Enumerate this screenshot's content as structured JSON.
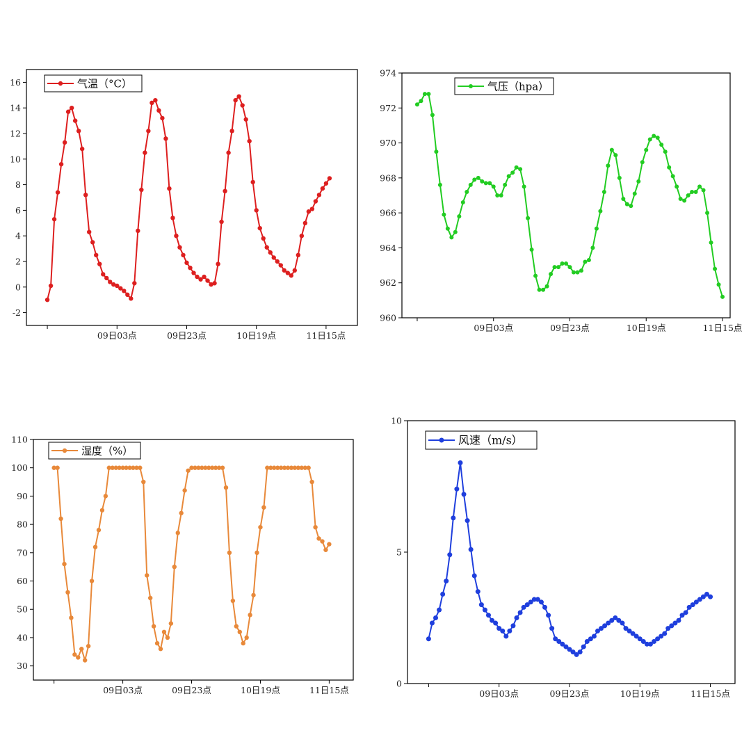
{
  "chart_data": [
    {
      "type": "line",
      "legend": "气温（°C）",
      "color": "#dd1f1f",
      "x_ticks": [
        "09日03点",
        "09日23点",
        "10日19点",
        "11日15点"
      ],
      "x_tick_index": [
        20,
        40,
        60,
        80
      ],
      "y_ticks": [
        -2,
        0,
        2,
        4,
        6,
        8,
        10,
        12,
        14,
        16
      ],
      "ylim": [
        -3,
        17
      ],
      "xlim": [
        -6,
        89
      ],
      "values": [
        -1,
        0.1,
        5.3,
        7.4,
        9.6,
        11.3,
        13.7,
        14,
        13,
        12.2,
        10.8,
        7.2,
        4.3,
        3.5,
        2.5,
        1.8,
        1,
        0.7,
        0.4,
        0.2,
        0.1,
        -0.1,
        -0.3,
        -0.6,
        -0.9,
        0.3,
        4.4,
        7.6,
        10.5,
        12.2,
        14.4,
        14.6,
        13.8,
        13.2,
        11.6,
        7.7,
        5.4,
        4,
        3.1,
        2.5,
        1.9,
        1.5,
        1.1,
        0.8,
        0.6,
        0.8,
        0.5,
        0.2,
        0.3,
        1.8,
        5.1,
        7.5,
        10.5,
        12.2,
        14.6,
        14.9,
        14.2,
        13.1,
        11.4,
        8.2,
        6,
        4.6,
        3.8,
        3.1,
        2.7,
        2.3,
        2,
        1.7,
        1.3,
        1.1,
        0.9,
        1.3,
        2.5,
        4,
        5,
        5.9,
        6.1,
        6.7,
        7.2,
        7.7,
        8.1,
        8.5
      ]
    },
    {
      "type": "line",
      "legend": "气压（hpa）",
      "color": "#22cc22",
      "x_ticks": [
        "09日03点",
        "09日23点",
        "10日19点",
        "11日15点"
      ],
      "x_tick_index": [
        20,
        40,
        60,
        80
      ],
      "y_ticks": [
        960,
        962,
        964,
        966,
        968,
        970,
        972,
        974
      ],
      "ylim": [
        960,
        974
      ],
      "xlim": [
        -4,
        82
      ],
      "values": [
        972.2,
        972.4,
        972.8,
        972.8,
        971.6,
        969.5,
        967.6,
        965.9,
        965.1,
        964.6,
        964.9,
        965.8,
        966.6,
        967.2,
        967.6,
        967.9,
        968,
        967.8,
        967.7,
        967.7,
        967.5,
        967,
        967,
        967.6,
        968.1,
        968.3,
        968.6,
        968.5,
        967.5,
        965.7,
        963.9,
        962.4,
        961.6,
        961.6,
        961.8,
        962.5,
        962.9,
        962.9,
        963.1,
        963.1,
        962.9,
        962.6,
        962.6,
        962.7,
        963.2,
        963.3,
        964,
        965.1,
        966.1,
        967.2,
        968.7,
        969.6,
        969.3,
        968,
        966.8,
        966.5,
        966.4,
        967.1,
        967.8,
        968.9,
        969.6,
        970.2,
        970.4,
        970.3,
        969.9,
        969.5,
        968.6,
        968.1,
        967.5,
        966.8,
        966.7,
        967,
        967.2,
        967.2,
        967.5,
        967.3,
        966,
        964.3,
        962.8,
        961.9,
        961.2
      ]
    },
    {
      "type": "line",
      "legend": "湿度（%）",
      "color": "#e8893a",
      "x_ticks": [
        "09日03点",
        "09日23点",
        "10日19点",
        "11日15点"
      ],
      "x_tick_index": [
        20,
        40,
        60,
        80
      ],
      "y_ticks": [
        30,
        40,
        50,
        60,
        70,
        80,
        90,
        100,
        110
      ],
      "ylim": [
        25,
        110
      ],
      "xlim": [
        -6,
        87
      ],
      "values": [
        100,
        100,
        82,
        66,
        56,
        47,
        34,
        33,
        36,
        32,
        37,
        60,
        72,
        78,
        85,
        90,
        100,
        100,
        100,
        100,
        100,
        100,
        100,
        100,
        100,
        100,
        95,
        62,
        54,
        44,
        38,
        36,
        42,
        40,
        45,
        65,
        77,
        84,
        92,
        99,
        100,
        100,
        100,
        100,
        100,
        100,
        100,
        100,
        100,
        100,
        93,
        70,
        53,
        44,
        42,
        38,
        40,
        48,
        55,
        70,
        79,
        86,
        100,
        100,
        100,
        100,
        100,
        100,
        100,
        100,
        100,
        100,
        100,
        100,
        100,
        95,
        79,
        75,
        74,
        71,
        73
      ]
    },
    {
      "type": "line",
      "legend": "风速（m/s）",
      "color": "#1f3fdd",
      "x_ticks": [
        "09日03点",
        "09日23点",
        "10日19点",
        "11日15点"
      ],
      "x_tick_index": [
        20,
        40,
        60,
        80
      ],
      "y_ticks": [
        0,
        5,
        10
      ],
      "ylim": [
        0,
        10
      ],
      "xlim": [
        -6,
        87
      ],
      "values": [
        1.7,
        2.3,
        2.5,
        2.8,
        3.4,
        3.9,
        4.9,
        6.3,
        7.4,
        8.4,
        7.2,
        6.2,
        5.1,
        4.1,
        3.5,
        3,
        2.8,
        2.6,
        2.4,
        2.3,
        2.1,
        2,
        1.8,
        2,
        2.2,
        2.5,
        2.7,
        2.9,
        3,
        3.1,
        3.2,
        3.2,
        3.1,
        2.9,
        2.6,
        2.1,
        1.7,
        1.6,
        1.5,
        1.4,
        1.3,
        1.2,
        1.1,
        1.2,
        1.4,
        1.6,
        1.7,
        1.8,
        2,
        2.1,
        2.2,
        2.3,
        2.4,
        2.5,
        2.4,
        2.3,
        2.1,
        2,
        1.9,
        1.8,
        1.7,
        1.6,
        1.5,
        1.5,
        1.6,
        1.7,
        1.8,
        1.9,
        2.1,
        2.2,
        2.3,
        2.4,
        2.6,
        2.7,
        2.9,
        3,
        3.1,
        3.2,
        3.3,
        3.4,
        3.3
      ]
    }
  ]
}
